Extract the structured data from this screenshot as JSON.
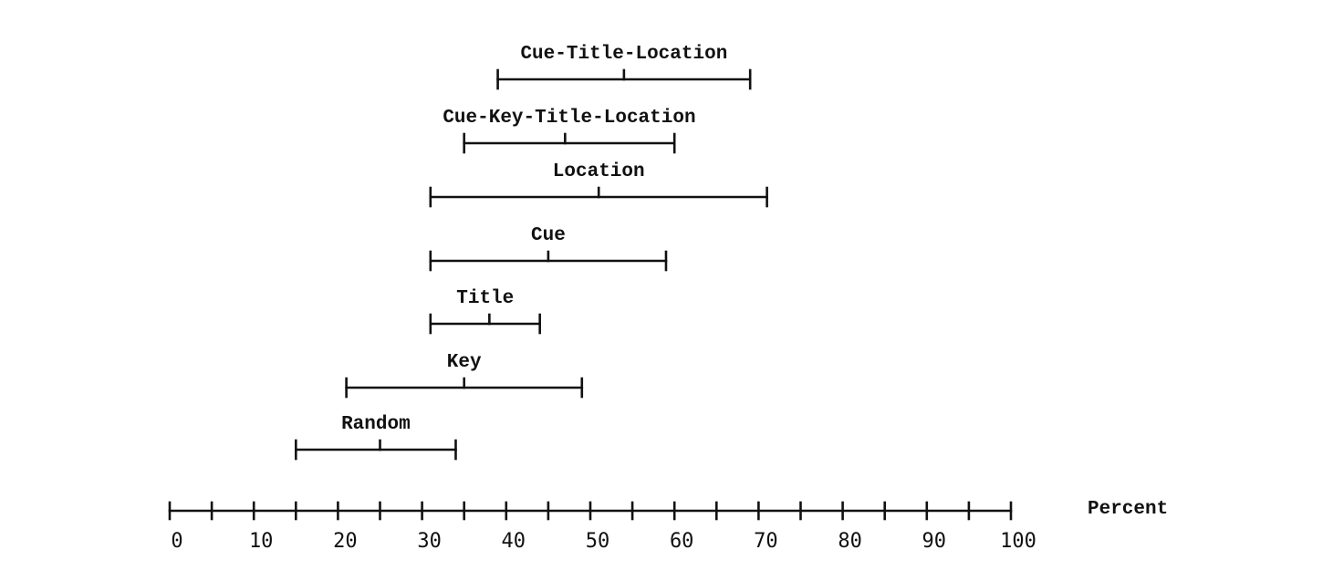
{
  "chart_data": {
    "type": "range",
    "xlabel": "Percent",
    "xlim": [
      0,
      100
    ],
    "tick_step": 5,
    "tick_labels": [
      "0",
      "10",
      "20",
      "30",
      "40",
      "50",
      "60",
      "70",
      "80",
      "90",
      "100"
    ],
    "series": [
      {
        "name": "Cue-Title-Location",
        "low": 39,
        "mid": 54,
        "high": 69
      },
      {
        "name": "Cue-Key-Title-Location",
        "low": 35,
        "mid": 47,
        "high": 60
      },
      {
        "name": "Location",
        "low": 31,
        "mid": 51,
        "high": 71
      },
      {
        "name": "Cue",
        "low": 31,
        "mid": 45,
        "high": 59
      },
      {
        "name": "Title",
        "low": 31,
        "mid": 38,
        "high": 44
      },
      {
        "name": "Key",
        "low": 21,
        "mid": 35,
        "high": 49
      },
      {
        "name": "Random",
        "low": 15,
        "mid": 25,
        "high": 34
      }
    ]
  }
}
